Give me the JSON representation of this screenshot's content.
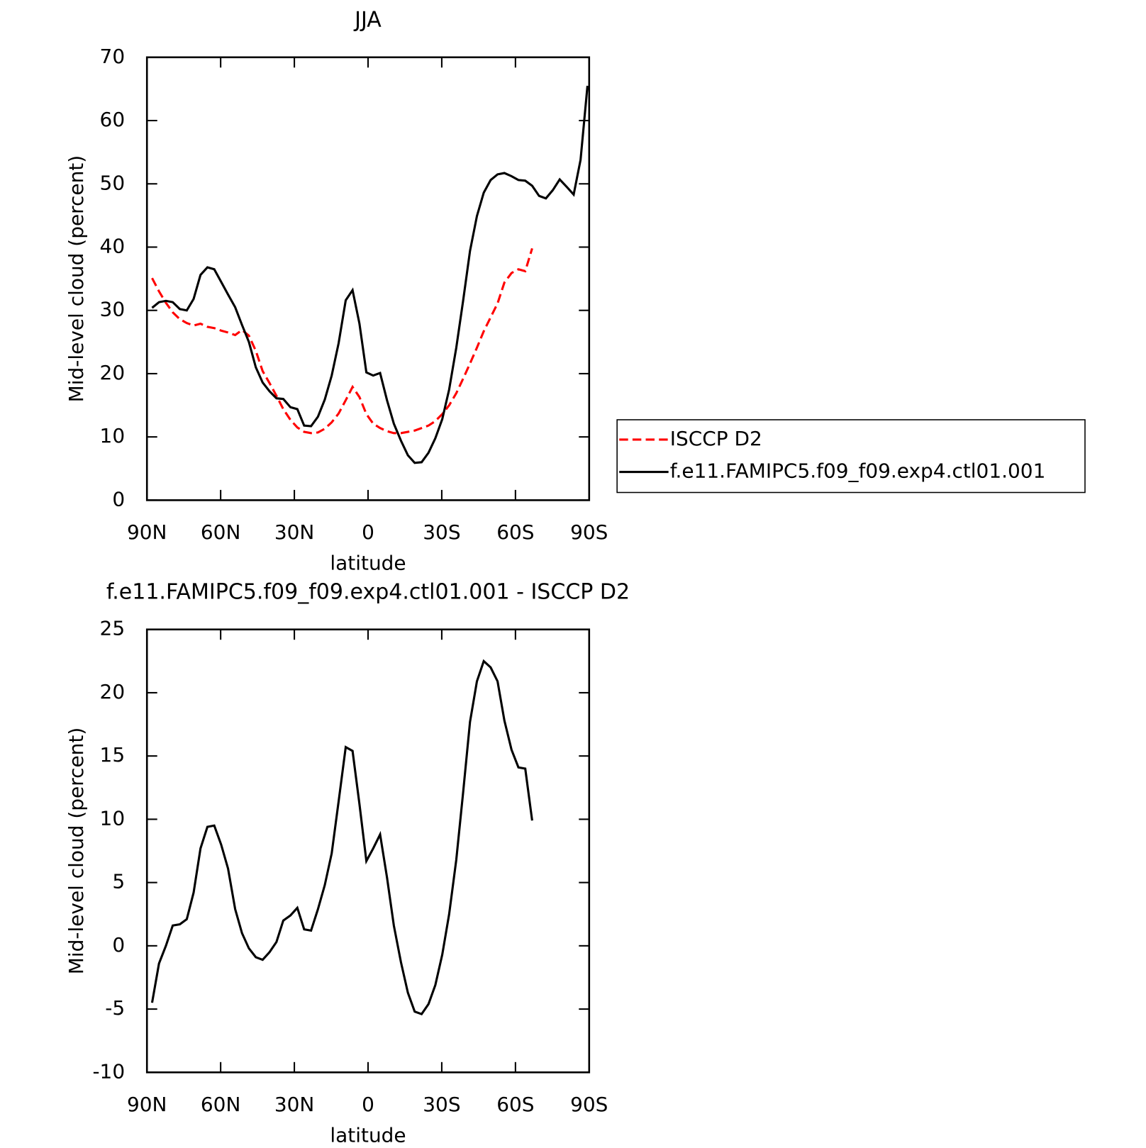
{
  "chart_data": [
    {
      "type": "line",
      "title": "JJA",
      "xlabel": "latitude",
      "ylabel": "Mid-level cloud (percent)",
      "x": [
        87.9,
        85.1,
        82.3,
        79.5,
        76.6,
        73.8,
        71.0,
        68.2,
        65.4,
        62.6,
        59.8,
        57.0,
        54.1,
        51.3,
        48.5,
        45.7,
        42.9,
        40.1,
        37.3,
        34.5,
        31.6,
        28.8,
        26.0,
        23.2,
        20.4,
        17.6,
        14.8,
        12.0,
        9.1,
        6.3,
        3.5,
        0.7,
        -2.1,
        -4.9,
        -7.7,
        -10.5,
        -13.4,
        -16.2,
        -19.0,
        -21.8,
        -24.6,
        -27.4,
        -30.2,
        -33.0,
        -35.9,
        -38.7,
        -41.5,
        -44.3,
        -47.1,
        -49.9,
        -52.7,
        -55.5,
        -58.4,
        -61.2,
        -64.0,
        -66.8,
        -69.6,
        -72.4,
        -75.2,
        -78.0,
        -80.9,
        -83.7,
        -86.5,
        -89.3
      ],
      "series": [
        {
          "name": "ISCCP D2",
          "color": "#ff0000",
          "line_style": "dashed",
          "values": [
            35.1,
            33.0,
            31.2,
            29.7,
            28.6,
            28.0,
            27.6,
            27.9,
            27.4,
            27.2,
            26.8,
            26.5,
            26.1,
            26.9,
            26.0,
            23.6,
            20.4,
            18.5,
            16.5,
            14.4,
            12.7,
            11.5,
            10.8,
            10.6,
            10.7,
            11.3,
            12.3,
            13.7,
            15.8,
            17.9,
            16.3,
            13.6,
            12.1,
            11.4,
            10.9,
            10.6,
            10.6,
            10.8,
            11.0,
            11.4,
            11.8,
            12.5,
            13.6,
            15.0,
            16.9,
            19.2,
            21.6,
            24.1,
            26.7,
            28.9,
            31.1,
            34.4,
            35.9,
            36.5,
            36.2,
            39.8,
            null,
            null,
            null,
            null,
            null,
            null,
            null,
            null
          ]
        },
        {
          "name": "f.e11.FAMIPC5.f09_f09.exp4.ctl01.001",
          "color": "#000000",
          "line_style": "solid",
          "values": [
            30.4,
            31.3,
            31.5,
            31.3,
            30.2,
            30.0,
            31.8,
            35.6,
            36.8,
            36.5,
            34.5,
            32.5,
            30.5,
            27.7,
            25.0,
            21.0,
            18.6,
            17.2,
            16.1,
            16.0,
            14.7,
            14.4,
            11.8,
            11.7,
            13.2,
            15.9,
            19.7,
            24.8,
            31.6,
            33.2,
            27.9,
            20.2,
            19.7,
            20.1,
            15.8,
            12.1,
            9.4,
            7.1,
            5.9,
            6.0,
            7.5,
            9.8,
            12.8,
            17.5,
            24.1,
            31.5,
            39.4,
            44.9,
            48.6,
            50.6,
            51.5,
            51.7,
            51.2,
            50.6,
            50.5,
            49.7,
            48.1,
            47.7,
            49.0,
            50.7,
            49.5,
            48.3,
            53.8,
            65.5
          ]
        }
      ],
      "xlim": [
        90,
        -90
      ],
      "xticks": [
        {
          "value": 90,
          "label": "90N"
        },
        {
          "value": 60,
          "label": "60N"
        },
        {
          "value": 30,
          "label": "30N"
        },
        0,
        {
          "value": -30,
          "label": "30S"
        },
        {
          "value": -60,
          "label": "60S"
        },
        {
          "value": -90,
          "label": "90S"
        }
      ],
      "ylim": [
        0,
        70
      ],
      "yticks": [
        0,
        10,
        20,
        30,
        40,
        50,
        60,
        70
      ],
      "legend": "right"
    },
    {
      "type": "line",
      "title": "f.e11.FAMIPC5.f09_f09.exp4.ctl01.001 - ISCCP D2",
      "xlabel": "latitude",
      "ylabel": "Mid-level cloud (percent)",
      "x": [
        87.9,
        85.1,
        82.3,
        79.5,
        76.6,
        73.8,
        71.0,
        68.2,
        65.4,
        62.6,
        59.8,
        57.0,
        54.1,
        51.3,
        48.5,
        45.7,
        42.9,
        40.1,
        37.3,
        34.5,
        31.6,
        28.8,
        26.0,
        23.2,
        20.4,
        17.6,
        14.8,
        12.0,
        9.1,
        6.3,
        3.5,
        0.7,
        -2.1,
        -4.9,
        -7.7,
        -10.5,
        -13.4,
        -16.2,
        -19.0,
        -21.8,
        -24.6,
        -27.4,
        -30.2,
        -33.0,
        -35.9,
        -38.7,
        -41.5,
        -44.3,
        -47.1,
        -49.9,
        -52.7,
        -55.5,
        -58.4,
        -61.2,
        -64.0,
        -66.8,
        -69.6,
        -72.4,
        -75.2,
        -78.0,
        -80.9,
        -83.7,
        -86.5,
        -89.3
      ],
      "series": [
        {
          "color": "#000000",
          "line_style": "solid",
          "values": [
            -4.5,
            -1.4,
            0.0,
            1.6,
            1.7,
            2.1,
            4.2,
            7.7,
            9.4,
            9.5,
            8.0,
            6.1,
            2.9,
            1.0,
            -0.2,
            -0.9,
            -1.1,
            -0.5,
            0.3,
            2.0,
            2.4,
            3.0,
            1.3,
            1.2,
            2.9,
            4.8,
            7.3,
            11.4,
            15.7,
            15.4,
            11.2,
            6.7,
            7.7,
            8.8,
            5.4,
            1.6,
            -1.3,
            -3.7,
            -5.2,
            -5.4,
            -4.6,
            -3.1,
            -0.7,
            2.5,
            6.8,
            12.1,
            17.7,
            20.9,
            22.5,
            22.0,
            20.9,
            17.8,
            15.5,
            14.1,
            14.0,
            9.9,
            null,
            null,
            null,
            null,
            null,
            null,
            null,
            null
          ]
        }
      ],
      "xlim": [
        90,
        -90
      ],
      "xticks": [
        {
          "value": 90,
          "label": "90N"
        },
        {
          "value": 60,
          "label": "60N"
        },
        {
          "value": 30,
          "label": "30N"
        },
        0,
        {
          "value": -30,
          "label": "30S"
        },
        {
          "value": -60,
          "label": "60S"
        },
        {
          "value": -90,
          "label": "90S"
        }
      ],
      "ylim": [
        -10,
        25
      ],
      "yticks": [
        -10,
        -5,
        0,
        5,
        10,
        15,
        20,
        25
      ]
    }
  ]
}
